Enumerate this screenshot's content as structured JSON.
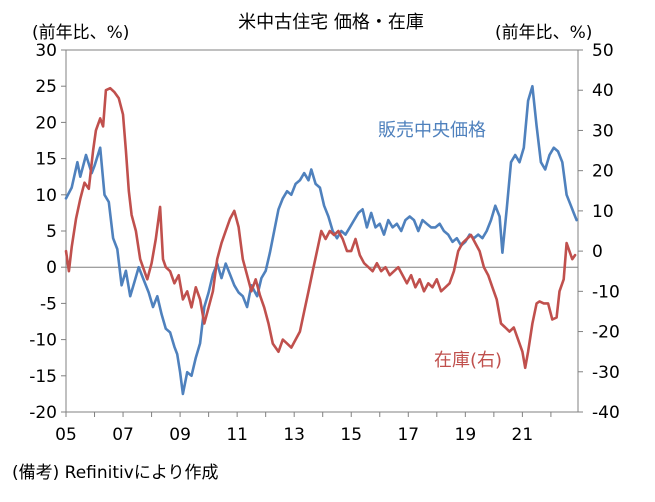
{
  "chart_data": {
    "type": "line",
    "title": "米中古住宅 価格・在庫",
    "y_left_label": "(前年比、%)",
    "y_right_label": "(前年比、%)",
    "source_note": "(備考) Refinitivにより作成",
    "x_tick_labels": [
      "05",
      "07",
      "09",
      "11",
      "13",
      "15",
      "17",
      "19",
      "21"
    ],
    "x_ticks": [
      2005,
      2007,
      2009,
      2011,
      2013,
      2015,
      2017,
      2019,
      2021
    ],
    "xlim": [
      2005,
      2022.95
    ],
    "y_left": {
      "ylim": [
        -20,
        30
      ],
      "ticks": [
        "-20",
        "-15",
        "-10",
        "-5",
        "0",
        "5",
        "10",
        "15",
        "20",
        "25",
        "30"
      ]
    },
    "y_right": {
      "ylim": [
        -40,
        50
      ],
      "ticks": [
        "-40",
        "-30",
        "-20",
        "-10",
        "0",
        "10",
        "20",
        "30",
        "40",
        "50"
      ]
    },
    "grid": false,
    "zero_line": true,
    "series": [
      {
        "name": "販売中央価格",
        "axis": "left",
        "color": "#4F81BD",
        "label_text": "販売中央価格",
        "points": [
          [
            2005.0,
            9.5
          ],
          [
            2005.2,
            11.0
          ],
          [
            2005.4,
            14.5
          ],
          [
            2005.5,
            12.5
          ],
          [
            2005.7,
            15.5
          ],
          [
            2005.9,
            13.0
          ],
          [
            2006.0,
            14.0
          ],
          [
            2006.2,
            16.5
          ],
          [
            2006.35,
            10.0
          ],
          [
            2006.5,
            9.0
          ],
          [
            2006.65,
            4.0
          ],
          [
            2006.8,
            2.5
          ],
          [
            2006.95,
            -2.5
          ],
          [
            2007.1,
            -0.5
          ],
          [
            2007.25,
            -4.0
          ],
          [
            2007.4,
            -2.0
          ],
          [
            2007.55,
            0.0
          ],
          [
            2007.7,
            -1.5
          ],
          [
            2007.9,
            -3.5
          ],
          [
            2008.05,
            -5.5
          ],
          [
            2008.2,
            -4.0
          ],
          [
            2008.35,
            -6.5
          ],
          [
            2008.5,
            -8.5
          ],
          [
            2008.65,
            -9.0
          ],
          [
            2008.8,
            -11.0
          ],
          [
            2008.9,
            -12.0
          ],
          [
            2009.0,
            -14.5
          ],
          [
            2009.1,
            -17.5
          ],
          [
            2009.25,
            -14.5
          ],
          [
            2009.4,
            -15.0
          ],
          [
            2009.55,
            -12.5
          ],
          [
            2009.7,
            -10.5
          ],
          [
            2009.85,
            -5.5
          ],
          [
            2010.0,
            -3.5
          ],
          [
            2010.15,
            -1.0
          ],
          [
            2010.3,
            0.5
          ],
          [
            2010.45,
            -1.5
          ],
          [
            2010.6,
            0.5
          ],
          [
            2010.75,
            -1.0
          ],
          [
            2010.9,
            -2.5
          ],
          [
            2011.05,
            -3.5
          ],
          [
            2011.2,
            -4.0
          ],
          [
            2011.35,
            -5.5
          ],
          [
            2011.5,
            -2.5
          ],
          [
            2011.7,
            -4.0
          ],
          [
            2011.85,
            -1.5
          ],
          [
            2012.0,
            -0.5
          ],
          [
            2012.15,
            2.0
          ],
          [
            2012.3,
            5.0
          ],
          [
            2012.45,
            8.0
          ],
          [
            2012.6,
            9.5
          ],
          [
            2012.75,
            10.5
          ],
          [
            2012.9,
            10.0
          ],
          [
            2013.05,
            11.5
          ],
          [
            2013.2,
            12.0
          ],
          [
            2013.35,
            13.0
          ],
          [
            2013.5,
            12.0
          ],
          [
            2013.6,
            13.5
          ],
          [
            2013.75,
            11.5
          ],
          [
            2013.9,
            11.0
          ],
          [
            2014.05,
            8.5
          ],
          [
            2014.2,
            7.0
          ],
          [
            2014.35,
            5.0
          ],
          [
            2014.5,
            4.0
          ],
          [
            2014.65,
            5.0
          ],
          [
            2014.8,
            4.5
          ],
          [
            2014.95,
            5.5
          ],
          [
            2015.1,
            6.5
          ],
          [
            2015.25,
            7.5
          ],
          [
            2015.4,
            8.0
          ],
          [
            2015.55,
            5.5
          ],
          [
            2015.7,
            7.5
          ],
          [
            2015.85,
            5.5
          ],
          [
            2016.0,
            6.0
          ],
          [
            2016.15,
            4.5
          ],
          [
            2016.3,
            6.5
          ],
          [
            2016.45,
            5.5
          ],
          [
            2016.6,
            6.0
          ],
          [
            2016.75,
            5.0
          ],
          [
            2016.9,
            6.5
          ],
          [
            2017.05,
            7.0
          ],
          [
            2017.2,
            6.5
          ],
          [
            2017.35,
            5.0
          ],
          [
            2017.5,
            6.5
          ],
          [
            2017.65,
            6.0
          ],
          [
            2017.8,
            5.5
          ],
          [
            2017.95,
            5.5
          ],
          [
            2018.1,
            6.0
          ],
          [
            2018.25,
            5.0
          ],
          [
            2018.4,
            4.5
          ],
          [
            2018.55,
            3.5
          ],
          [
            2018.7,
            4.0
          ],
          [
            2018.85,
            3.0
          ],
          [
            2019.0,
            3.5
          ],
          [
            2019.15,
            4.5
          ],
          [
            2019.3,
            4.0
          ],
          [
            2019.45,
            4.5
          ],
          [
            2019.6,
            4.0
          ],
          [
            2019.75,
            5.0
          ],
          [
            2019.9,
            6.5
          ],
          [
            2020.05,
            8.5
          ],
          [
            2020.2,
            7.0
          ],
          [
            2020.3,
            2.0
          ],
          [
            2020.45,
            8.0
          ],
          [
            2020.6,
            14.5
          ],
          [
            2020.75,
            15.5
          ],
          [
            2020.9,
            14.5
          ],
          [
            2021.05,
            16.5
          ],
          [
            2021.2,
            23.0
          ],
          [
            2021.35,
            25.0
          ],
          [
            2021.5,
            19.5
          ],
          [
            2021.65,
            14.5
          ],
          [
            2021.8,
            13.5
          ],
          [
            2021.95,
            15.5
          ],
          [
            2022.1,
            16.5
          ],
          [
            2022.25,
            16.0
          ],
          [
            2022.4,
            14.5
          ],
          [
            2022.55,
            10.0
          ],
          [
            2022.7,
            8.5
          ],
          [
            2022.8,
            7.5
          ],
          [
            2022.9,
            6.5
          ]
        ]
      },
      {
        "name": "在庫(右)",
        "axis": "right",
        "color": "#C0504D",
        "label_text": "在庫(右)",
        "points": [
          [
            2005.0,
            0.0
          ],
          [
            2005.1,
            -5.0
          ],
          [
            2005.2,
            1.0
          ],
          [
            2005.35,
            8.0
          ],
          [
            2005.5,
            13.0
          ],
          [
            2005.65,
            17.0
          ],
          [
            2005.8,
            15.5
          ],
          [
            2005.95,
            25.0
          ],
          [
            2006.05,
            30.0
          ],
          [
            2006.2,
            33.0
          ],
          [
            2006.3,
            31.0
          ],
          [
            2006.4,
            40.0
          ],
          [
            2006.55,
            40.5
          ],
          [
            2006.7,
            39.5
          ],
          [
            2006.85,
            38.0
          ],
          [
            2007.0,
            34.0
          ],
          [
            2007.1,
            25.0
          ],
          [
            2007.2,
            15.0
          ],
          [
            2007.3,
            9.0
          ],
          [
            2007.45,
            5.0
          ],
          [
            2007.6,
            -2.0
          ],
          [
            2007.7,
            -4.0
          ],
          [
            2007.85,
            -7.0
          ],
          [
            2008.0,
            -3.0
          ],
          [
            2008.15,
            3.0
          ],
          [
            2008.3,
            11.0
          ],
          [
            2008.4,
            -2.0
          ],
          [
            2008.5,
            -4.0
          ],
          [
            2008.65,
            -5.0
          ],
          [
            2008.8,
            -8.0
          ],
          [
            2008.95,
            -6.0
          ],
          [
            2009.1,
            -12.0
          ],
          [
            2009.25,
            -10.0
          ],
          [
            2009.4,
            -14.0
          ],
          [
            2009.55,
            -9.0
          ],
          [
            2009.7,
            -12.0
          ],
          [
            2009.85,
            -18.0
          ],
          [
            2010.0,
            -14.0
          ],
          [
            2010.15,
            -10.0
          ],
          [
            2010.3,
            -2.0
          ],
          [
            2010.45,
            2.0
          ],
          [
            2010.6,
            5.0
          ],
          [
            2010.75,
            8.0
          ],
          [
            2010.9,
            10.0
          ],
          [
            2011.05,
            6.0
          ],
          [
            2011.2,
            -2.0
          ],
          [
            2011.35,
            -6.0
          ],
          [
            2011.5,
            -10.0
          ],
          [
            2011.65,
            -7.0
          ],
          [
            2011.8,
            -11.0
          ],
          [
            2011.95,
            -14.0
          ],
          [
            2012.1,
            -18.0
          ],
          [
            2012.25,
            -23.0
          ],
          [
            2012.45,
            -25.0
          ],
          [
            2012.6,
            -22.0
          ],
          [
            2012.75,
            -23.0
          ],
          [
            2012.9,
            -24.0
          ],
          [
            2013.05,
            -22.0
          ],
          [
            2013.2,
            -20.0
          ],
          [
            2013.35,
            -15.0
          ],
          [
            2013.5,
            -10.0
          ],
          [
            2013.65,
            -5.0
          ],
          [
            2013.8,
            0.0
          ],
          [
            2013.95,
            5.0
          ],
          [
            2014.1,
            3.0
          ],
          [
            2014.25,
            5.0
          ],
          [
            2014.4,
            4.0
          ],
          [
            2014.55,
            5.0
          ],
          [
            2014.7,
            3.0
          ],
          [
            2014.85,
            0.0
          ],
          [
            2015.0,
            0.0
          ],
          [
            2015.15,
            3.0
          ],
          [
            2015.3,
            -1.0
          ],
          [
            2015.45,
            -3.0
          ],
          [
            2015.6,
            -4.0
          ],
          [
            2015.75,
            -5.0
          ],
          [
            2015.9,
            -3.0
          ],
          [
            2016.05,
            -5.0
          ],
          [
            2016.2,
            -4.0
          ],
          [
            2016.35,
            -6.0
          ],
          [
            2016.5,
            -5.0
          ],
          [
            2016.65,
            -4.0
          ],
          [
            2016.8,
            -6.0
          ],
          [
            2016.95,
            -8.0
          ],
          [
            2017.1,
            -6.0
          ],
          [
            2017.25,
            -9.0
          ],
          [
            2017.4,
            -7.0
          ],
          [
            2017.55,
            -10.0
          ],
          [
            2017.7,
            -8.0
          ],
          [
            2017.85,
            -9.0
          ],
          [
            2018.0,
            -7.0
          ],
          [
            2018.15,
            -10.0
          ],
          [
            2018.3,
            -9.0
          ],
          [
            2018.45,
            -8.0
          ],
          [
            2018.6,
            -5.0
          ],
          [
            2018.75,
            0.0
          ],
          [
            2018.9,
            2.0
          ],
          [
            2019.05,
            3.0
          ],
          [
            2019.2,
            4.0
          ],
          [
            2019.35,
            2.0
          ],
          [
            2019.5,
            0.0
          ],
          [
            2019.65,
            -4.0
          ],
          [
            2019.8,
            -6.0
          ],
          [
            2019.95,
            -9.0
          ],
          [
            2020.1,
            -12.0
          ],
          [
            2020.25,
            -18.0
          ],
          [
            2020.4,
            -19.0
          ],
          [
            2020.55,
            -20.0
          ],
          [
            2020.7,
            -19.0
          ],
          [
            2020.85,
            -22.0
          ],
          [
            2021.0,
            -25.0
          ],
          [
            2021.1,
            -29.0
          ],
          [
            2021.2,
            -25.0
          ],
          [
            2021.35,
            -18.0
          ],
          [
            2021.5,
            -13.0
          ],
          [
            2021.6,
            -12.5
          ],
          [
            2021.75,
            -13.0
          ],
          [
            2021.9,
            -13.0
          ],
          [
            2022.05,
            -17.0
          ],
          [
            2022.2,
            -16.5
          ],
          [
            2022.3,
            -10.0
          ],
          [
            2022.45,
            -7.0
          ],
          [
            2022.55,
            2.0
          ],
          [
            2022.65,
            0.0
          ],
          [
            2022.75,
            -2.0
          ],
          [
            2022.85,
            -1.0
          ]
        ]
      }
    ]
  }
}
